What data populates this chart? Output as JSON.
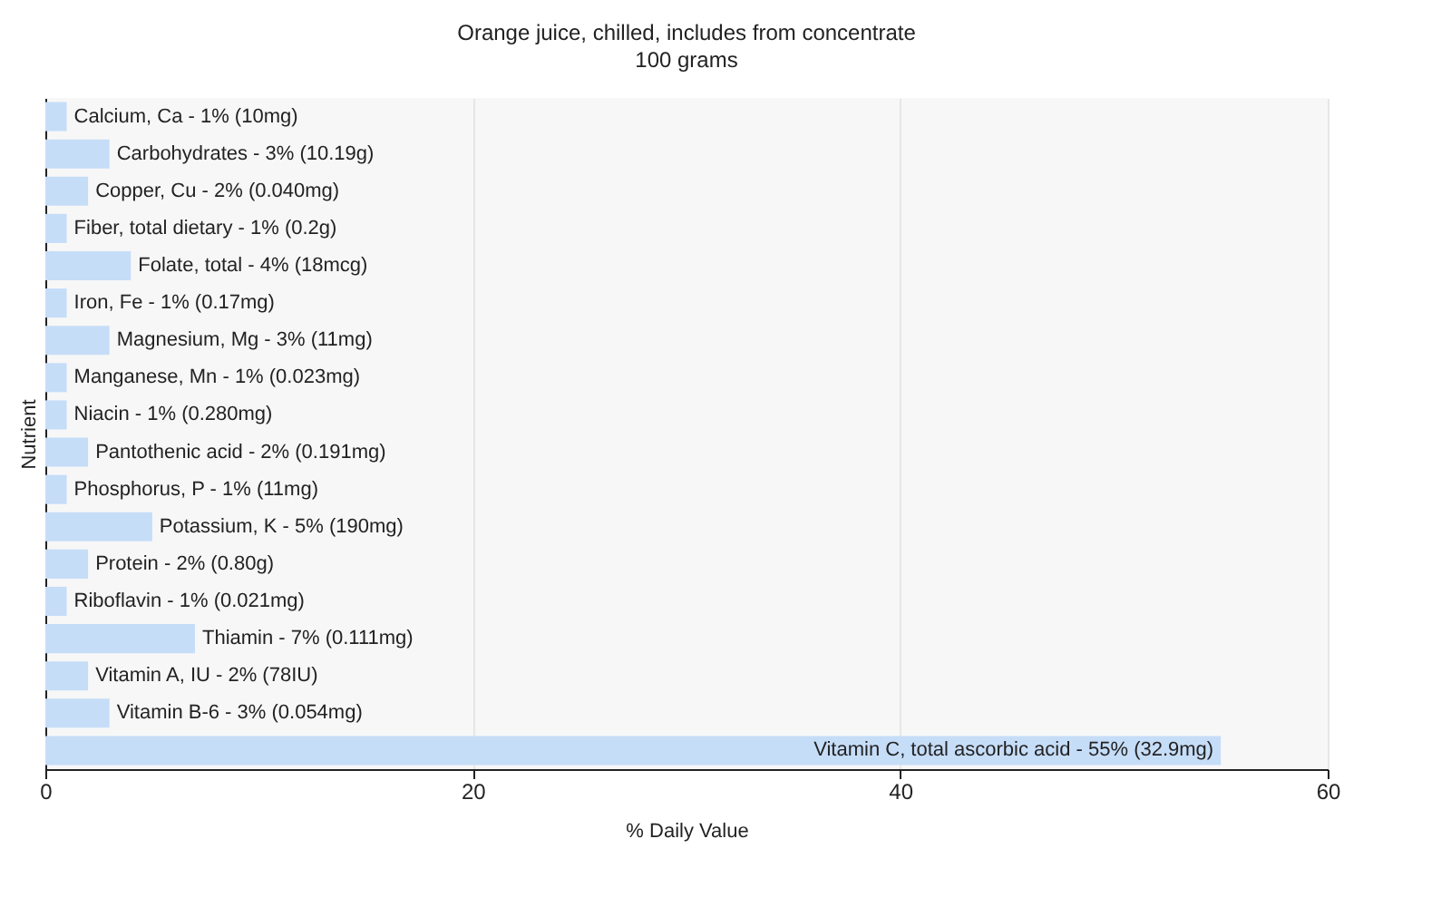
{
  "chart_data": {
    "type": "bar",
    "orientation": "horizontal",
    "title": "Orange juice, chilled, includes from concentrate",
    "subtitle": "100 grams",
    "xlabel": "% Daily Value",
    "ylabel": "Nutrient",
    "categories": [
      "Calcium, Ca -",
      "Carbohydrates -",
      "Copper, Cu -",
      "Fiber, total dietary -",
      "Folate, total -",
      "Iron, Fe -",
      "Magnesium, Mg -",
      "Manganese, Mn -",
      "Niacin -",
      "Pantothenic acid -",
      "Phosphorus, P -",
      "Potassium, K -",
      "Protein -",
      "Riboflavin -",
      "Thiamin -",
      "Vitamin A, IU -",
      "Vitamin B-6 -",
      "Vitamin C, total ascorbic acid -"
    ],
    "values": [
      1,
      3,
      2,
      1,
      4,
      1,
      3,
      1,
      1,
      2,
      1,
      5,
      2,
      1,
      7,
      2,
      3,
      55
    ],
    "value_labels": [
      "1% (10mg)",
      "3% (10.19g)",
      "2% (0.040mg)",
      "1% (0.2g)",
      "4% (18mcg)",
      "1% (0.17mg)",
      "3% (11mg)",
      "1% (0.023mg)",
      "1% (0.280mg)",
      "2% (0.191mg)",
      "1% (11mg)",
      "5% (190mg)",
      "2% (0.80g)",
      "1% (0.021mg)",
      "7% (0.111mg)",
      "2% (78IU)",
      "3% (0.054mg)",
      "55% (32.9mg)"
    ],
    "color": "#c6ddf8",
    "xlim": [
      0,
      60
    ],
    "xticks": [
      0,
      20,
      40,
      60
    ],
    "grid": "x"
  }
}
